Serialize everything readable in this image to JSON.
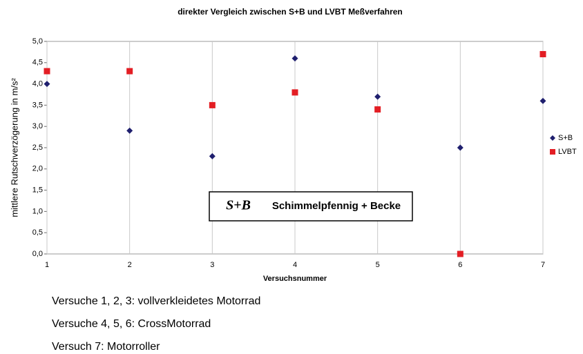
{
  "chart_data": {
    "type": "scatter",
    "title": "direkter Vergleich zwischen S+B und LVBT Meßverfahren",
    "x_label": "Versuchsnummer",
    "y_label": "mittlere Rutschverzögerung in m/s²",
    "x": [
      1,
      2,
      3,
      4,
      5,
      6,
      7
    ],
    "series": [
      {
        "name": "S+B",
        "color": "#1f1f6e",
        "marker": "diamond",
        "values": [
          4.0,
          2.9,
          2.3,
          4.6,
          3.7,
          2.5,
          3.6
        ]
      },
      {
        "name": "LVBT",
        "color": "#e31e24",
        "marker": "square",
        "values": [
          4.3,
          4.3,
          3.5,
          3.8,
          3.4,
          0.0,
          4.7
        ]
      }
    ],
    "xlim": [
      1,
      7
    ],
    "xticks": [
      1,
      2,
      3,
      4,
      5,
      6,
      7
    ],
    "ylim": [
      0,
      5
    ],
    "yticks": [
      {
        "value": 0,
        "label": "0,0"
      },
      {
        "value": 0.5,
        "label": "0,5"
      },
      {
        "value": 1,
        "label": "1,0"
      },
      {
        "value": 1.5,
        "label": "1,5"
      },
      {
        "value": 2,
        "label": "2,0"
      },
      {
        "value": 2.5,
        "label": "2,5"
      },
      {
        "value": 3,
        "label": "3,0"
      },
      {
        "value": 3.5,
        "label": "3,5"
      },
      {
        "value": 4,
        "label": "4,0"
      },
      {
        "value": 4.5,
        "label": "4,5"
      },
      {
        "value": 5,
        "label": "5,0"
      }
    ],
    "grid": true,
    "legend": "right"
  },
  "logo_mark": "S+B",
  "logo_text": "Schimmelpfennig + Becke",
  "notes": [
    "Versuche 1, 2, 3: vollverkleidetes Motorrad",
    "Versuche 4, 5, 6: CrossMotorrad",
    "Versuch 7: Motorroller"
  ]
}
